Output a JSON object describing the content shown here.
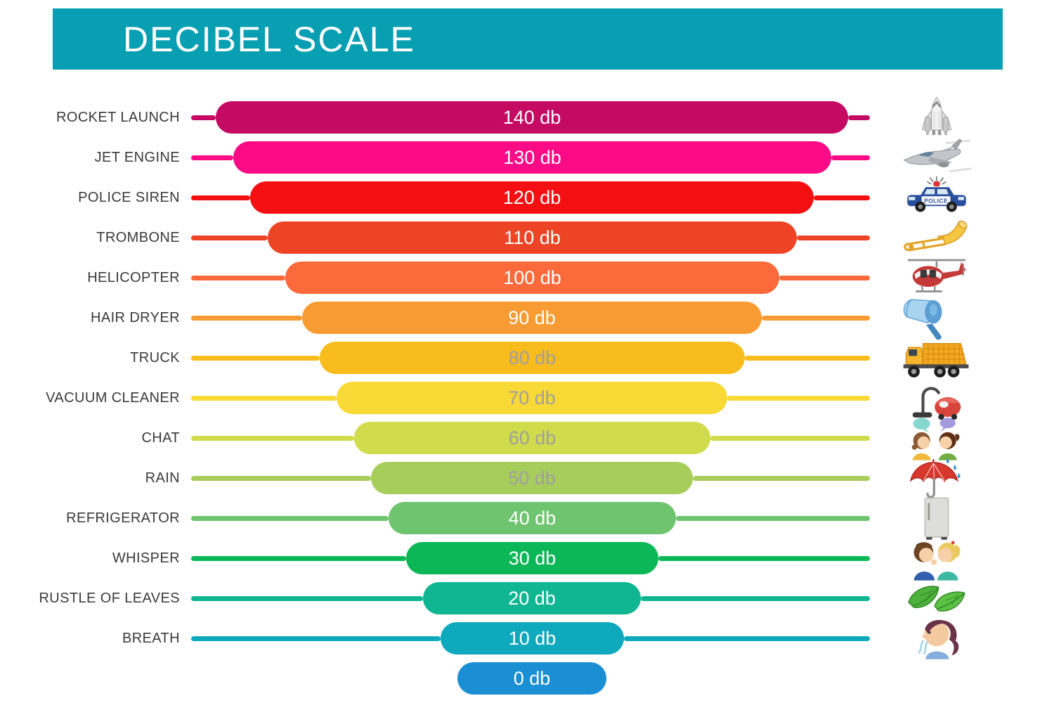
{
  "title": "DECIBEL SCALE",
  "colors": {
    "header_bg": "#089fb2",
    "title_text": "#ffffff",
    "background": "#ffffff",
    "label_text": "#3a3a3a",
    "value_text_light": "#ffffff",
    "value_text_muted": "#a0a0a0"
  },
  "icons": {
    "police_car_text": "POLICE"
  },
  "chart_data": {
    "type": "bar",
    "title": "DECIBEL SCALE",
    "orientation": "horizontal-centered-funnel",
    "value_unit": "db",
    "value_range": [
      0,
      140
    ],
    "value_step": 10,
    "legend": "none",
    "grid": false,
    "categories": [
      "ROCKET LAUNCH",
      "JET ENGINE",
      "POLICE SIREN",
      "TROMBONE",
      "HELICOPTER",
      "HAIR DRYER",
      "TRUCK",
      "VACUUM CLEANER",
      "CHAT",
      "RAIN",
      "REFRIGERATOR",
      "WHISPER",
      "RUSTLE OF LEAVES",
      "BREATH",
      ""
    ],
    "values": [
      140,
      130,
      120,
      110,
      100,
      90,
      80,
      70,
      60,
      50,
      40,
      30,
      20,
      10,
      0
    ],
    "rows": [
      {
        "label": "ROCKET LAUNCH",
        "value": 140,
        "value_label": "140 db",
        "bar_color": "#c50a63",
        "value_text_color": "#ffffff",
        "icon": "space-shuttle-icon"
      },
      {
        "label": "JET ENGINE",
        "value": 130,
        "value_label": "130 db",
        "bar_color": "#fb0b85",
        "value_text_color": "#ffffff",
        "icon": "fighter-jet-icon"
      },
      {
        "label": "POLICE SIREN",
        "value": 120,
        "value_label": "120 db",
        "bar_color": "#f40f12",
        "value_text_color": "#ffffff",
        "icon": "police-car-icon"
      },
      {
        "label": "TROMBONE",
        "value": 110,
        "value_label": "110 db",
        "bar_color": "#ee4426",
        "value_text_color": "#ffffff",
        "icon": "trombone-icon"
      },
      {
        "label": "HELICOPTER",
        "value": 100,
        "value_label": "100 db",
        "bar_color": "#fc6a3c",
        "value_text_color": "#ffffff",
        "icon": "helicopter-icon"
      },
      {
        "label": "HAIR DRYER",
        "value": 90,
        "value_label": "90 db",
        "bar_color": "#f89b32",
        "value_text_color": "#ffffff",
        "icon": "hair-dryer-icon"
      },
      {
        "label": "TRUCK",
        "value": 80,
        "value_label": "80 db",
        "bar_color": "#f8bc1c",
        "value_text_color": "#a0a0a0",
        "icon": "dump-truck-icon"
      },
      {
        "label": "VACUUM CLEANER",
        "value": 70,
        "value_label": "70 db",
        "bar_color": "#f9d935",
        "value_text_color": "#a0a0a0",
        "icon": "vacuum-cleaner-icon"
      },
      {
        "label": "CHAT",
        "value": 60,
        "value_label": "60 db",
        "bar_color": "#d0dc4b",
        "value_text_color": "#a0a0a0",
        "icon": "chat-kids-icon"
      },
      {
        "label": "RAIN",
        "value": 50,
        "value_label": "50 db",
        "bar_color": "#a7cd5b",
        "value_text_color": "#a0a0a0",
        "icon": "rain-umbrella-icon"
      },
      {
        "label": "REFRIGERATOR",
        "value": 40,
        "value_label": "40 db",
        "bar_color": "#6fc46f",
        "value_text_color": "#ffffff",
        "icon": "refrigerator-icon"
      },
      {
        "label": "WHISPER",
        "value": 30,
        "value_label": "30 db",
        "bar_color": "#0cb757",
        "value_text_color": "#ffffff",
        "icon": "whisper-kids-icon"
      },
      {
        "label": "RUSTLE OF LEAVES",
        "value": 20,
        "value_label": "20 db",
        "bar_color": "#10b691",
        "value_text_color": "#ffffff",
        "icon": "leaves-icon"
      },
      {
        "label": "BREATH",
        "value": 10,
        "value_label": "10 db",
        "bar_color": "#0fa9bd",
        "value_text_color": "#ffffff",
        "icon": "breath-girl-icon"
      },
      {
        "label": "",
        "value": 0,
        "value_label": "0 db",
        "bar_color": "#1b8fd3",
        "value_text_color": "#ffffff",
        "icon": null
      }
    ]
  }
}
